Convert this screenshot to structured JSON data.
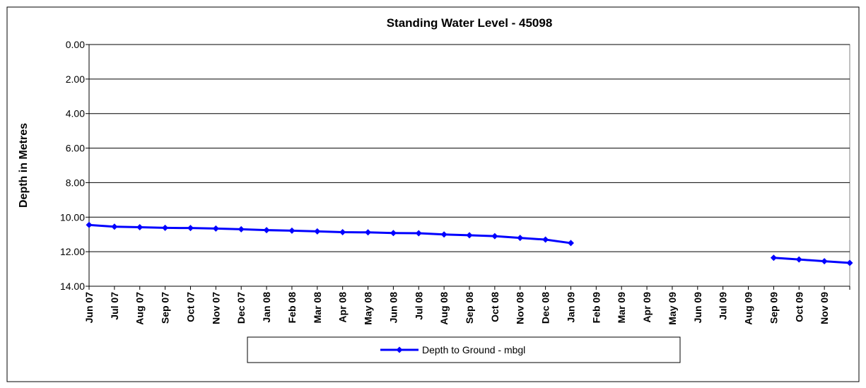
{
  "chart_data": {
    "type": "line",
    "title": "Standing Water Level - 45098",
    "y_label": "Depth in Metres",
    "categories": [
      "Jun 07",
      "Jul 07",
      "Aug 07",
      "Sep 07",
      "Oct 07",
      "Nov 07",
      "Dec 07",
      "Jan 08",
      "Feb 08",
      "Mar 08",
      "Apr 08",
      "May 08",
      "Jun 08",
      "Jul 08",
      "Aug 08",
      "Sep 08",
      "Oct 08",
      "Nov 08",
      "Dec 08",
      "Jan 09",
      "Feb 09",
      "Mar 09",
      "Apr 09",
      "May 09",
      "Jun 09",
      "Jul 09",
      "Aug 09",
      "Sep 09",
      "Oct 09",
      "Nov 09",
      null
    ],
    "series": [
      {
        "name": "Depth to Ground - mbgl",
        "color": "#0000ff",
        "values": [
          10.45,
          10.55,
          10.58,
          10.62,
          10.63,
          10.66,
          10.7,
          10.75,
          10.78,
          10.82,
          10.87,
          10.88,
          10.92,
          10.93,
          11.0,
          11.05,
          11.1,
          11.2,
          11.3,
          11.5,
          null,
          null,
          null,
          null,
          null,
          null,
          null,
          12.35,
          12.45,
          12.55,
          12.65
        ]
      }
    ],
    "ylim": [
      0,
      14
    ],
    "y_inverted": true,
    "yticks": [
      {
        "value": 0,
        "label": "0.00"
      },
      {
        "value": 2,
        "label": "2.00"
      },
      {
        "value": 4,
        "label": "4.00"
      },
      {
        "value": 6,
        "label": "6.00"
      },
      {
        "value": 8,
        "label": "8.00"
      },
      {
        "value": 10,
        "label": "10.00"
      },
      {
        "value": 12,
        "label": "12.00"
      },
      {
        "value": 14,
        "label": "14.00"
      }
    ],
    "grid": true
  }
}
